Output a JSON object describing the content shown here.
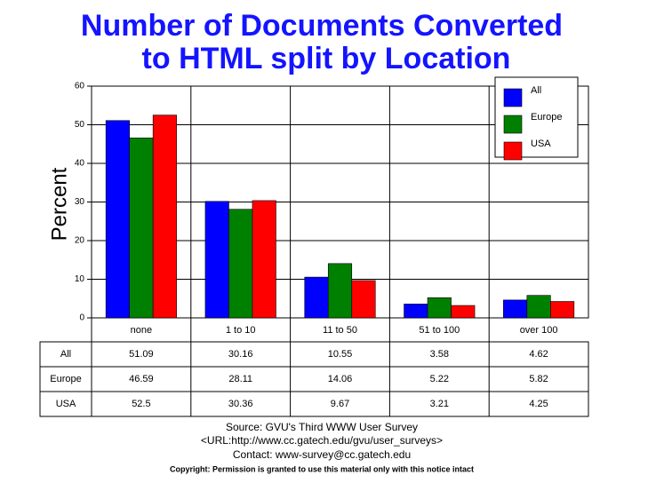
{
  "chart_data": {
    "type": "bar",
    "title": [
      "Number of Documents Converted",
      "to HTML split by Location"
    ],
    "y_label": "Percent",
    "categories": [
      "none",
      "1 to 10",
      "11 to 50",
      "51 to 100",
      "over 100"
    ],
    "series": [
      {
        "name": "All",
        "color": "#0000ff",
        "values": [
          51.09,
          30.16,
          10.55,
          3.58,
          4.62
        ]
      },
      {
        "name": "Europe",
        "color": "#008000",
        "values": [
          46.59,
          28.11,
          14.06,
          5.22,
          5.82
        ]
      },
      {
        "name": "USA",
        "color": "#ff0000",
        "values": [
          52.5,
          30.36,
          9.67,
          3.21,
          4.25
        ]
      }
    ],
    "ylim": [
      0,
      60
    ],
    "yticks": [
      0,
      10,
      20,
      30,
      40,
      50,
      60
    ],
    "grid": true,
    "legend": "top-right",
    "notes": [
      "Source: GVU's Third WWW User Survey",
      "<URL:http://www.cc.gatech.edu/gvu/user_surveys>",
      "Contact: www-survey@cc.gatech.edu",
      "Copyright: Permission is granted to use this material only with this notice intact"
    ]
  }
}
